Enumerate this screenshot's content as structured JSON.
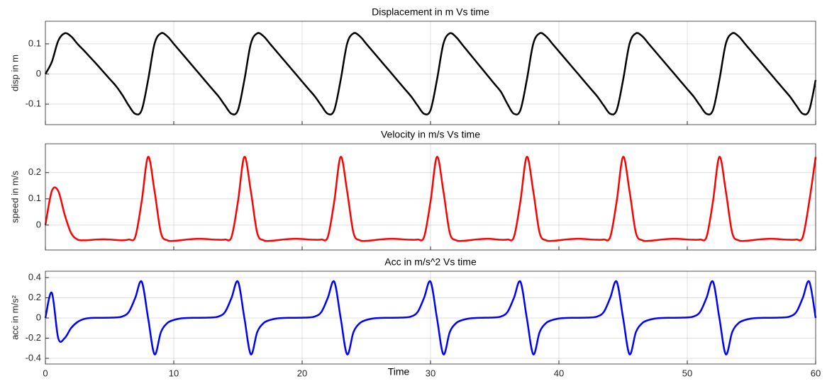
{
  "chart_data": [
    {
      "type": "line",
      "title": "Displacement in m Vs time",
      "y_label": "disp in m",
      "x": [
        0,
        0.5,
        1,
        1.5,
        2,
        2.5,
        3,
        3.5,
        4,
        4.5,
        5,
        5.5,
        6,
        6.5,
        7,
        7.5,
        8,
        8.5,
        9,
        9.5,
        10,
        10.5,
        11,
        11.5,
        12,
        12.5,
        13,
        13.5,
        14,
        14.5,
        15,
        15.5,
        16,
        16.5,
        17,
        17.5,
        18,
        18.5,
        19,
        19.5,
        20,
        20.5,
        21,
        21.5,
        22,
        22.5,
        23,
        23.5,
        24,
        24.5,
        25,
        25.5,
        26,
        26.5,
        27,
        27.5,
        28,
        28.5,
        29,
        29.5,
        30,
        30.5,
        31,
        31.5,
        32,
        32.5,
        33,
        33.5,
        34,
        34.5,
        35,
        35.5,
        36,
        36.5,
        37,
        37.5,
        38,
        38.5,
        39,
        39.5,
        40,
        40.5,
        41,
        41.5,
        42,
        42.5,
        43,
        43.5,
        44,
        44.5,
        45,
        45.5,
        46,
        46.5,
        47,
        47.5,
        48,
        48.5,
        49,
        49.5,
        50,
        50.5,
        51,
        51.5,
        52,
        52.5,
        53,
        53.5,
        54,
        54.5,
        55,
        55.5,
        56,
        56.5,
        57,
        57.5,
        58,
        58.5,
        59,
        59.5,
        60
      ],
      "series": [
        {
          "color": "#000000",
          "values": [
            0,
            0.04,
            0.11,
            0.135,
            0.125,
            0.1,
            0.078,
            0.055,
            0.032,
            0.008,
            -0.016,
            -0.04,
            -0.07,
            -0.105,
            -0.132,
            -0.12,
            -0.02,
            0.1,
            0.135,
            0.125,
            0.1,
            0.075,
            0.05,
            0.025,
            0,
            -0.025,
            -0.05,
            -0.075,
            -0.105,
            -0.132,
            -0.12,
            -0.02,
            0.1,
            0.135,
            0.125,
            0.1,
            0.075,
            0.05,
            0.025,
            0,
            -0.025,
            -0.05,
            -0.075,
            -0.105,
            -0.132,
            -0.12,
            -0.02,
            0.1,
            0.135,
            0.125,
            0.1,
            0.075,
            0.05,
            0.025,
            0,
            -0.025,
            -0.05,
            -0.075,
            -0.105,
            -0.132,
            -0.12,
            -0.02,
            0.1,
            0.135,
            0.122,
            0.096,
            0.07,
            0.044,
            0.018,
            -0.008,
            -0.034,
            -0.06,
            -0.1,
            -0.132,
            -0.12,
            -0.02,
            0.1,
            0.135,
            0.125,
            0.1,
            0.075,
            0.05,
            0.025,
            0,
            -0.025,
            -0.05,
            -0.075,
            -0.105,
            -0.132,
            -0.12,
            -0.02,
            0.1,
            0.135,
            0.125,
            0.1,
            0.075,
            0.05,
            0.025,
            0,
            -0.025,
            -0.05,
            -0.075,
            -0.105,
            -0.132,
            -0.12,
            -0.02,
            0.1,
            0.135,
            0.125,
            0.1,
            0.075,
            0.05,
            0.025,
            0,
            -0.025,
            -0.05,
            -0.075,
            -0.105,
            -0.132,
            -0.12,
            -0.02
          ]
        }
      ],
      "xlim": [
        0,
        60
      ],
      "xticks": [
        0,
        10,
        20,
        30,
        40,
        50,
        60
      ],
      "xtick_labels": false,
      "ylim": [
        -0.168,
        0.175
      ],
      "yticks": [
        -0.1,
        0,
        0.1
      ],
      "grid": true
    },
    {
      "type": "line",
      "title": "Velocity in m/s Vs time",
      "y_label": "speed in m/s",
      "x": [
        0,
        0.5,
        1,
        1.5,
        2,
        2.5,
        3,
        3.5,
        4,
        4.5,
        5,
        5.5,
        6,
        6.5,
        7,
        7.5,
        8,
        8.5,
        9,
        9.5,
        10,
        10.5,
        11,
        11.5,
        12,
        12.5,
        13,
        13.5,
        14,
        14.5,
        15,
        15.5,
        16,
        16.5,
        17,
        17.5,
        18,
        18.5,
        19,
        19.5,
        20,
        20.5,
        21,
        21.5,
        22,
        22.5,
        23,
        23.5,
        24,
        24.5,
        25,
        25.5,
        26,
        26.5,
        27,
        27.5,
        28,
        28.5,
        29,
        29.5,
        30,
        30.5,
        31,
        31.5,
        32,
        32.5,
        33,
        33.5,
        34,
        34.5,
        35,
        35.5,
        36,
        36.5,
        37,
        37.5,
        38,
        38.5,
        39,
        39.5,
        40,
        40.5,
        41,
        41.5,
        42,
        42.5,
        43,
        43.5,
        44,
        44.5,
        45,
        45.5,
        46,
        46.5,
        47,
        47.5,
        48,
        48.5,
        49,
        49.5,
        50,
        50.5,
        51,
        51.5,
        52,
        52.5,
        53,
        53.5,
        54,
        54.5,
        55,
        55.5,
        56,
        56.5,
        57,
        57.5,
        58,
        58.5,
        59,
        59.5,
        60
      ],
      "series": [
        {
          "color": "#ff0000",
          "values": [
            0,
            0.13,
            0.13,
            0.04,
            -0.03,
            -0.055,
            -0.058,
            -0.057,
            -0.055,
            -0.054,
            -0.055,
            -0.057,
            -0.058,
            -0.055,
            -0.045,
            0.09,
            0.26,
            0.13,
            -0.03,
            -0.058,
            -0.06,
            -0.058,
            -0.055,
            -0.053,
            -0.052,
            -0.053,
            -0.055,
            -0.056,
            -0.055,
            -0.045,
            0.09,
            0.26,
            0.13,
            -0.03,
            -0.058,
            -0.06,
            -0.058,
            -0.055,
            -0.053,
            -0.052,
            -0.053,
            -0.055,
            -0.056,
            -0.055,
            -0.045,
            0.09,
            0.26,
            0.13,
            -0.03,
            -0.058,
            -0.06,
            -0.058,
            -0.055,
            -0.053,
            -0.052,
            -0.053,
            -0.055,
            -0.056,
            -0.055,
            -0.045,
            0.09,
            0.26,
            0.13,
            -0.03,
            -0.058,
            -0.06,
            -0.058,
            -0.055,
            -0.053,
            -0.052,
            -0.054,
            -0.056,
            -0.055,
            -0.045,
            0.09,
            0.26,
            0.13,
            -0.03,
            -0.058,
            -0.06,
            -0.058,
            -0.055,
            -0.053,
            -0.052,
            -0.053,
            -0.055,
            -0.056,
            -0.055,
            -0.045,
            0.09,
            0.26,
            0.13,
            -0.03,
            -0.058,
            -0.06,
            -0.058,
            -0.055,
            -0.053,
            -0.052,
            -0.053,
            -0.055,
            -0.056,
            -0.055,
            -0.045,
            0.09,
            0.26,
            0.13,
            -0.03,
            -0.058,
            -0.06,
            -0.058,
            -0.055,
            -0.053,
            -0.052,
            -0.053,
            -0.055,
            -0.056,
            -0.055,
            -0.045,
            0.09,
            0.26
          ]
        }
      ],
      "xlim": [
        0,
        60
      ],
      "xticks": [
        0,
        10,
        20,
        30,
        40,
        50,
        60
      ],
      "xtick_labels": false,
      "ylim": [
        -0.095,
        0.31
      ],
      "yticks": [
        0,
        0.1,
        0.2
      ],
      "grid": true
    },
    {
      "type": "line",
      "title": "Acc in m/s^2 Vs time",
      "y_label": "acc in m/s²",
      "x_label": "Time",
      "x": [
        0,
        0.5,
        1,
        1.5,
        2,
        2.5,
        3,
        3.5,
        4,
        4.5,
        5,
        5.5,
        6,
        6.5,
        7,
        7.5,
        8,
        8.5,
        9,
        9.5,
        10,
        10.5,
        11,
        11.5,
        12,
        12.5,
        13,
        13.5,
        14,
        14.5,
        15,
        15.5,
        16,
        16.5,
        17,
        17.5,
        18,
        18.5,
        19,
        19.5,
        20,
        20.5,
        21,
        21.5,
        22,
        22.5,
        23,
        23.5,
        24,
        24.5,
        25,
        25.5,
        26,
        26.5,
        27,
        27.5,
        28,
        28.5,
        29,
        29.5,
        30,
        30.5,
        31,
        31.5,
        32,
        32.5,
        33,
        33.5,
        34,
        34.5,
        35,
        35.5,
        36,
        36.5,
        37,
        37.5,
        38,
        38.5,
        39,
        39.5,
        40,
        40.5,
        41,
        41.5,
        42,
        42.5,
        43,
        43.5,
        44,
        44.5,
        45,
        45.5,
        46,
        46.5,
        47,
        47.5,
        48,
        48.5,
        49,
        49.5,
        50,
        50.5,
        51,
        51.5,
        52,
        52.5,
        53,
        53.5,
        54,
        54.5,
        55,
        55.5,
        56,
        56.5,
        57,
        57.5,
        58,
        58.5,
        59,
        59.5,
        60
      ],
      "series": [
        {
          "color": "#0000ff",
          "values": [
            0,
            0.25,
            -0.2,
            -0.2,
            -0.1,
            -0.04,
            -0.01,
            0,
            0.002,
            0.002,
            0.003,
            0.005,
            0.015,
            0.06,
            0.2,
            0.36,
            0,
            -0.36,
            -0.14,
            -0.05,
            -0.02,
            -0.005,
            0,
            0.002,
            0.002,
            0.003,
            0.005,
            0.015,
            0.06,
            0.2,
            0.36,
            0,
            -0.36,
            -0.14,
            -0.05,
            -0.02,
            -0.005,
            0,
            0.002,
            0.002,
            0.003,
            0.005,
            0.015,
            0.06,
            0.2,
            0.36,
            0,
            -0.36,
            -0.14,
            -0.05,
            -0.02,
            -0.005,
            0,
            0.002,
            0.002,
            0.003,
            0.005,
            0.015,
            0.06,
            0.2,
            0.36,
            0,
            -0.36,
            -0.14,
            -0.05,
            -0.02,
            -0.005,
            0,
            0.002,
            0.003,
            0.005,
            0.015,
            0.06,
            0.2,
            0.36,
            0,
            -0.36,
            -0.14,
            -0.05,
            -0.02,
            -0.005,
            0,
            0.002,
            0.002,
            0.003,
            0.005,
            0.015,
            0.06,
            0.2,
            0.36,
            0,
            -0.36,
            -0.14,
            -0.05,
            -0.02,
            -0.005,
            0,
            0.002,
            0.002,
            0.003,
            0.005,
            0.015,
            0.06,
            0.2,
            0.36,
            0,
            -0.36,
            -0.14,
            -0.05,
            -0.02,
            -0.005,
            0,
            0.002,
            0.002,
            0.003,
            0.005,
            0.015,
            0.06,
            0.2,
            0.36,
            0
          ]
        }
      ],
      "xlim": [
        0,
        60
      ],
      "xticks": [
        0,
        10,
        20,
        30,
        40,
        50,
        60
      ],
      "xtick_labels": true,
      "ylim": [
        -0.456,
        0.463
      ],
      "yticks": [
        -0.4,
        -0.2,
        0,
        0.2,
        0.4
      ],
      "grid": true
    }
  ]
}
